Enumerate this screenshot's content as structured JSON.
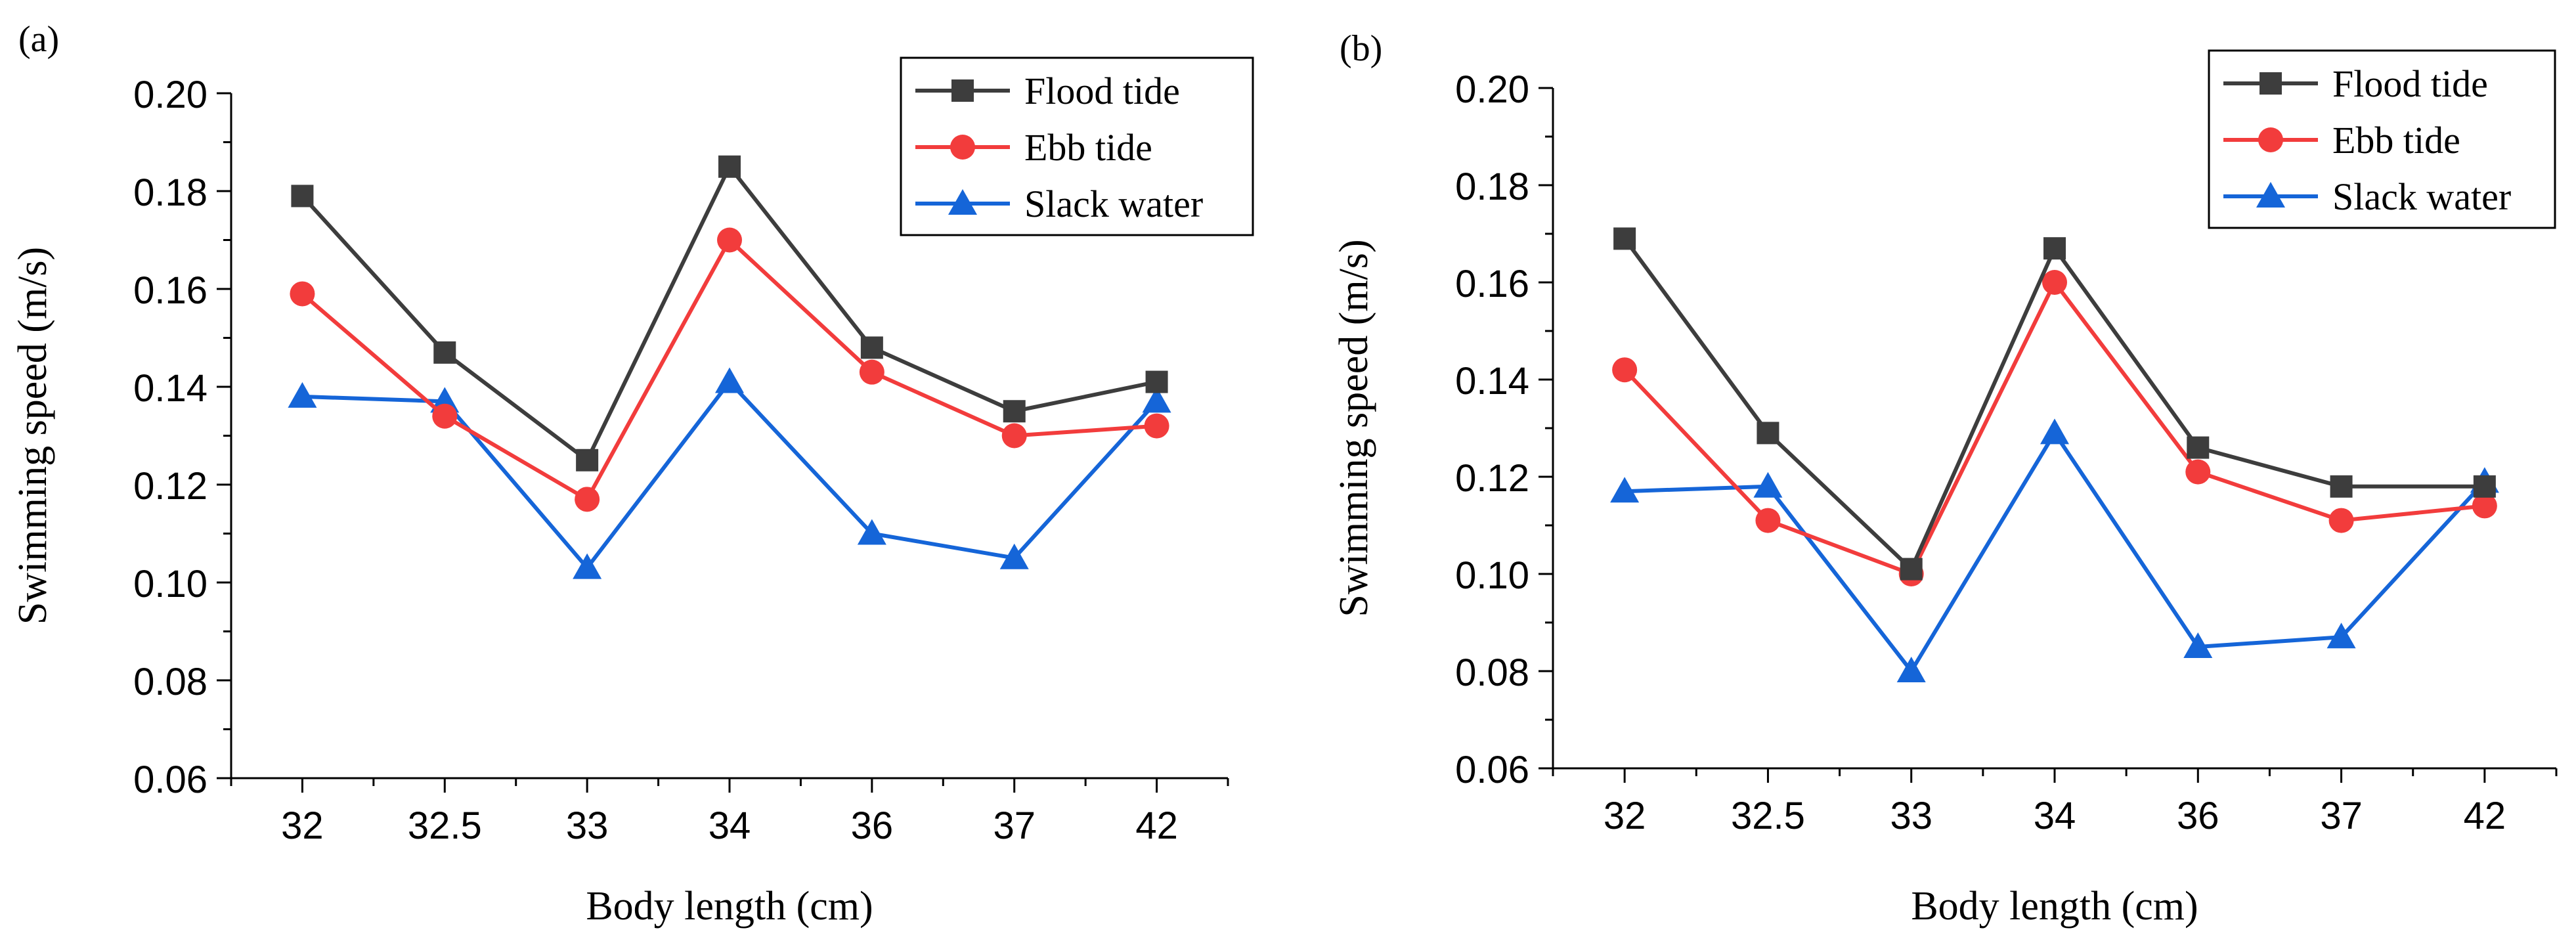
{
  "chart_data": [
    {
      "panel_label": "(a)",
      "type": "line",
      "title": "",
      "xlabel": "Body length (cm)",
      "ylabel": "Swimming speed (m/s)",
      "categories": [
        "32",
        "32.5",
        "33",
        "34",
        "36",
        "37",
        "42"
      ],
      "ylim": [
        0.06,
        0.2
      ],
      "yticks": [
        "0.06",
        "0.08",
        "0.10",
        "0.12",
        "0.14",
        "0.16",
        "0.18",
        "0.20"
      ],
      "legend_position": "top-right",
      "series": [
        {
          "name": "Flood tide",
          "color": "#3d3d3d",
          "marker": "square",
          "values": [
            0.179,
            0.147,
            0.125,
            0.185,
            0.148,
            0.135,
            0.141
          ]
        },
        {
          "name": "Ebb tide",
          "color": "#f23c3c",
          "marker": "circle",
          "values": [
            0.159,
            0.134,
            0.117,
            0.17,
            0.143,
            0.13,
            0.132
          ]
        },
        {
          "name": "Slack water",
          "color": "#1565d8",
          "marker": "triangle",
          "values": [
            0.138,
            0.137,
            0.103,
            0.141,
            0.11,
            0.105,
            0.137
          ]
        }
      ]
    },
    {
      "panel_label": "(b)",
      "type": "line",
      "title": "",
      "xlabel": "Body length (cm)",
      "ylabel": "Swimming speed (m/s)",
      "categories": [
        "32",
        "32.5",
        "33",
        "34",
        "36",
        "37",
        "42"
      ],
      "ylim": [
        0.06,
        0.2
      ],
      "yticks": [
        "0.06",
        "0.08",
        "0.10",
        "0.12",
        "0.14",
        "0.16",
        "0.18",
        "0.20"
      ],
      "legend_position": "top-right",
      "series": [
        {
          "name": "Flood tide",
          "color": "#3d3d3d",
          "marker": "square",
          "values": [
            0.169,
            0.129,
            0.101,
            0.167,
            0.126,
            0.118,
            0.118
          ]
        },
        {
          "name": "Ebb tide",
          "color": "#f23c3c",
          "marker": "circle",
          "values": [
            0.142,
            0.111,
            0.1,
            0.16,
            0.121,
            0.111,
            0.114
          ]
        },
        {
          "name": "Slack water",
          "color": "#1565d8",
          "marker": "triangle",
          "values": [
            0.117,
            0.118,
            0.08,
            0.129,
            0.085,
            0.087,
            0.119
          ]
        }
      ]
    }
  ]
}
